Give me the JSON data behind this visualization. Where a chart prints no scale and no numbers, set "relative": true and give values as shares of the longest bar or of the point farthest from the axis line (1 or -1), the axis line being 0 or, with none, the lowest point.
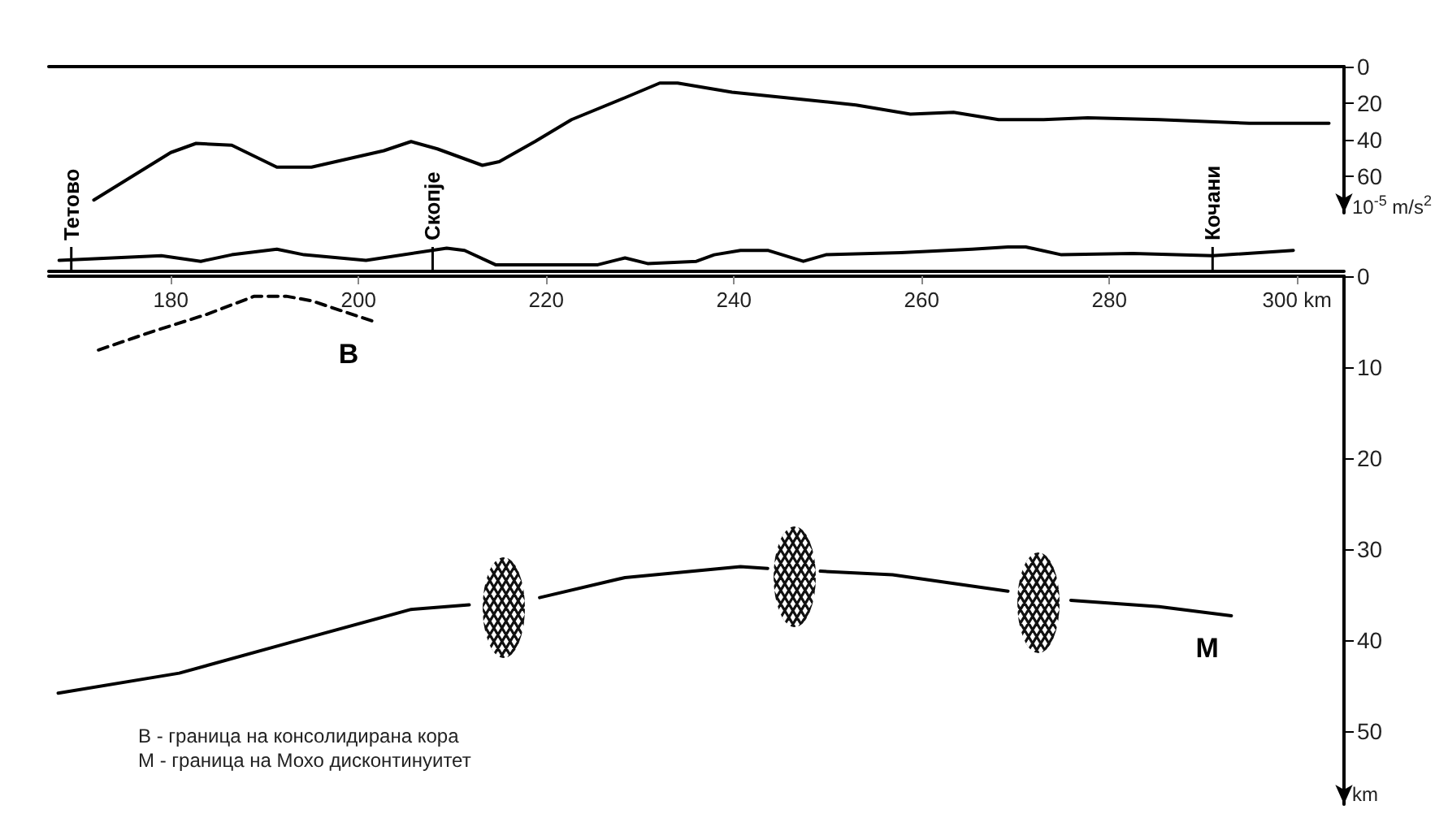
{
  "chart_data": [
    {
      "type": "line",
      "ylabel": "10$^{-5}$ m/s$^{2}$",
      "xlim": [
        167,
        305
      ],
      "ylim": [
        80,
        0
      ],
      "yticks": [
        0,
        20,
        40,
        60
      ],
      "tick_labels": "y",
      "series": [
        {
          "color": "#000000",
          "x": [
            171.8,
            180,
            182.7,
            186.5,
            191.3,
            195,
            202.7,
            205.6,
            208.4,
            213.2,
            215,
            218.8,
            222.7,
            228.4,
            232.1,
            234,
            239.8,
            247.4,
            253,
            258.8,
            263.4,
            268.2,
            273,
            277.7,
            285.3,
            294.9,
            303.4
          ],
          "values": [
            73,
            47,
            42,
            43,
            55,
            55,
            46,
            41,
            45,
            54,
            52,
            41,
            29,
            17,
            9,
            9,
            14,
            18,
            21,
            26,
            25,
            29,
            29,
            28,
            29,
            31,
            31
          ]
        }
      ]
    },
    {
      "type": "line",
      "relative": true,
      "xlim": [
        167,
        305
      ],
      "tick_labels": false,
      "ref_lines": [
        {
          "axis": "x",
          "value": 169.4,
          "label": "Тетово"
        },
        {
          "axis": "x",
          "value": 207.9,
          "label": "Скопје"
        },
        {
          "axis": "x",
          "value": 291,
          "label": "Кочани"
        }
      ],
      "series": [
        {
          "color": "#000000",
          "x": [
            168.1,
            179,
            183.2,
            186.5,
            191.3,
            194.2,
            200.8,
            209.4,
            211.3,
            214.6,
            225.5,
            228.4,
            230.8,
            236,
            237.9,
            240.7,
            243.6,
            247.4,
            249.8,
            257.8,
            265.4,
            269.2,
            271.1,
            274.9,
            282.5,
            291,
            299.6
          ],
          "values": [
            0.45,
            0.64,
            0.41,
            0.68,
            0.91,
            0.68,
            0.45,
            0.95,
            0.86,
            0.27,
            0.27,
            0.55,
            0.32,
            0.41,
            0.68,
            0.86,
            0.86,
            0.41,
            0.68,
            0.77,
            0.91,
            1,
            1,
            0.68,
            0.73,
            0.64,
            0.86
          ]
        }
      ]
    },
    {
      "type": "line",
      "ylabel": "km",
      "xlim": [
        167,
        305
      ],
      "xticks": [
        180,
        200,
        220,
        240,
        260,
        280,
        {
          "value": 300,
          "label": "300 km"
        }
      ],
      "ylim": [
        58,
        0
      ],
      "yticks": [
        0,
        10,
        20,
        30,
        40,
        50
      ],
      "annotations": [
        "В - граница на консолидирана кора",
        "М - граница на Мохо дисконтинуитет"
      ],
      "series": [
        {
          "name": "В",
          "color": "#000000",
          "line_style": "dashed",
          "x": [
            172.3,
            178,
            183.8,
            188.9,
            192.3,
            195,
            201.7
          ],
          "values": [
            8.1,
            6.1,
            4.2,
            2.2,
            2.2,
            2.7,
            5.0
          ]
        },
        {
          "name": "М",
          "color": "#000000",
          "line_style": "solid",
          "x": [
            168.0,
            180.9,
            193.2,
            205.6,
            211.8,
            215.5,
            219.3,
            228.4,
            240.7,
            243.6,
            246.4,
            249.2,
            256.9,
            269.2,
            272.5,
            275.9,
            285.3,
            293
          ],
          "values": [
            45.8,
            43.6,
            40.1,
            36.6,
            36.1,
            null,
            35.3,
            33.1,
            31.9,
            32.1,
            null,
            32.4,
            32.8,
            34.6,
            null,
            35.6,
            36.3,
            37.3
          ]
        }
      ]
    }
  ]
}
